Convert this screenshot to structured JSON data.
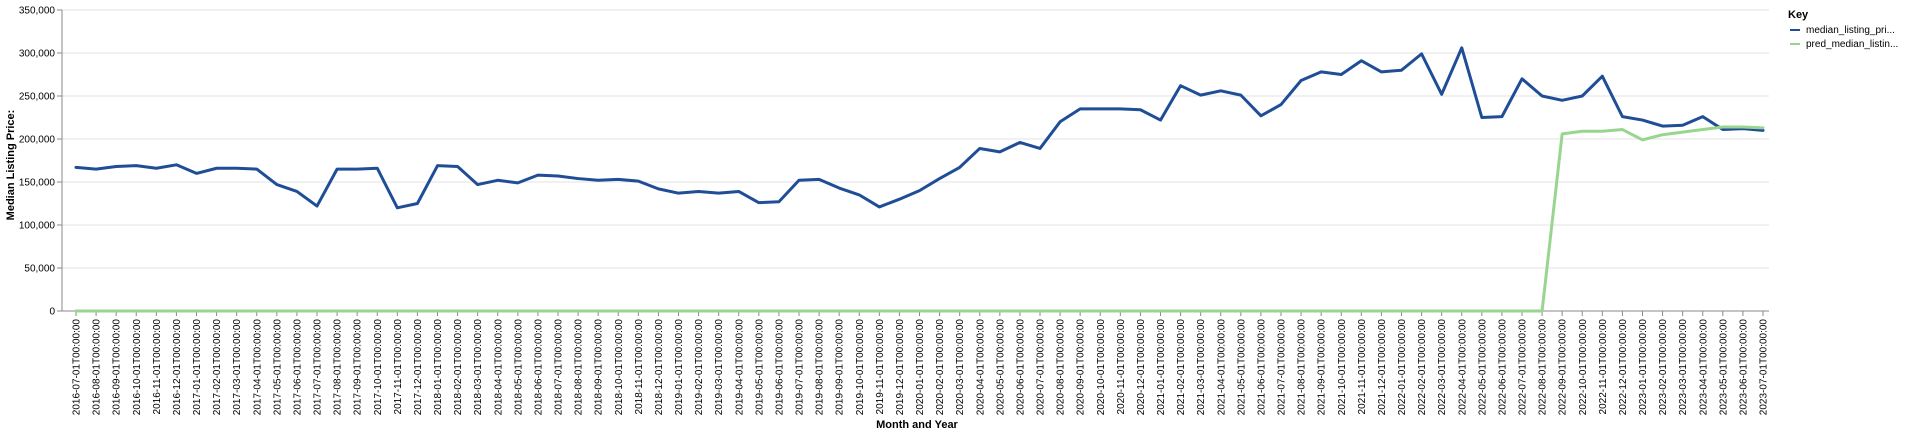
{
  "chart_data": {
    "type": "line",
    "xlabel": "Month and Year",
    "ylabel": "Median Listing Price:",
    "ylim": [
      0,
      350000
    ],
    "yticks": [
      "0",
      "50,000",
      "100,000",
      "150,000",
      "200,000",
      "250,000",
      "300,000",
      "350,000"
    ],
    "grid": true,
    "legend": {
      "title": "Key",
      "position": "top-right"
    },
    "x": [
      "2016-07-01T00:00:00",
      "2016-08-01T00:00:00",
      "2016-09-01T00:00:00",
      "2016-10-01T00:00:00",
      "2016-11-01T00:00:00",
      "2016-12-01T00:00:00",
      "2017-01-01T00:00:00",
      "2017-02-01T00:00:00",
      "2017-03-01T00:00:00",
      "2017-04-01T00:00:00",
      "2017-05-01T00:00:00",
      "2017-06-01T00:00:00",
      "2017-07-01T00:00:00",
      "2017-08-01T00:00:00",
      "2017-09-01T00:00:00",
      "2017-10-01T00:00:00",
      "2017-11-01T00:00:00",
      "2017-12-01T00:00:00",
      "2018-01-01T00:00:00",
      "2018-02-01T00:00:00",
      "2018-03-01T00:00:00",
      "2018-04-01T00:00:00",
      "2018-05-01T00:00:00",
      "2018-06-01T00:00:00",
      "2018-07-01T00:00:00",
      "2018-08-01T00:00:00",
      "2018-09-01T00:00:00",
      "2018-10-01T00:00:00",
      "2018-11-01T00:00:00",
      "2018-12-01T00:00:00",
      "2019-01-01T00:00:00",
      "2019-02-01T00:00:00",
      "2019-03-01T00:00:00",
      "2019-04-01T00:00:00",
      "2019-05-01T00:00:00",
      "2019-06-01T00:00:00",
      "2019-07-01T00:00:00",
      "2019-08-01T00:00:00",
      "2019-09-01T00:00:00",
      "2019-10-01T00:00:00",
      "2019-11-01T00:00:00",
      "2019-12-01T00:00:00",
      "2020-01-01T00:00:00",
      "2020-02-01T00:00:00",
      "2020-03-01T00:00:00",
      "2020-04-01T00:00:00",
      "2020-05-01T00:00:00",
      "2020-06-01T00:00:00",
      "2020-07-01T00:00:00",
      "2020-08-01T00:00:00",
      "2020-09-01T00:00:00",
      "2020-10-01T00:00:00",
      "2020-11-01T00:00:00",
      "2020-12-01T00:00:00",
      "2021-01-01T00:00:00",
      "2021-02-01T00:00:00",
      "2021-03-01T00:00:00",
      "2021-04-01T00:00:00",
      "2021-05-01T00:00:00",
      "2021-06-01T00:00:00",
      "2021-07-01T00:00:00",
      "2021-08-01T00:00:00",
      "2021-09-01T00:00:00",
      "2021-10-01T00:00:00",
      "2021-11-01T00:00:00",
      "2021-12-01T00:00:00",
      "2022-01-01T00:00:00",
      "2022-02-01T00:00:00",
      "2022-03-01T00:00:00",
      "2022-04-01T00:00:00",
      "2022-05-01T00:00:00",
      "2022-06-01T00:00:00",
      "2022-07-01T00:00:00",
      "2022-08-01T00:00:00",
      "2022-09-01T00:00:00",
      "2022-10-01T00:00:00",
      "2022-11-01T00:00:00",
      "2022-12-01T00:00:00",
      "2023-01-01T00:00:00",
      "2023-02-01T00:00:00",
      "2023-03-01T00:00:00",
      "2023-04-01T00:00:00",
      "2023-05-01T00:00:00",
      "2023-06-01T00:00:00",
      "2023-07-01T00:00:00"
    ],
    "series": [
      {
        "name": "median_listing_pri...",
        "color": "#1f4e96",
        "values": [
          167000,
          165000,
          168000,
          169000,
          166000,
          170000,
          160000,
          166000,
          166000,
          165000,
          147000,
          139000,
          122000,
          165000,
          165000,
          166000,
          120000,
          125000,
          169000,
          168000,
          147000,
          152000,
          149000,
          158000,
          157000,
          154000,
          152000,
          153000,
          151000,
          142000,
          137000,
          139000,
          137000,
          139000,
          126000,
          127000,
          152000,
          153000,
          143000,
          135000,
          121000,
          130000,
          140000,
          154000,
          167000,
          189000,
          185000,
          196000,
          189000,
          220000,
          235000,
          235000,
          235000,
          234000,
          222000,
          262000,
          251000,
          256000,
          251000,
          227000,
          240000,
          268000,
          278000,
          275000,
          291000,
          278000,
          280000,
          299000,
          252000,
          306000,
          225000,
          226000,
          270000,
          250000,
          245000,
          250000,
          273000,
          226000,
          222000,
          215000,
          216000,
          226000,
          211000,
          212000,
          210000
        ]
      },
      {
        "name": "pred_median_listin...",
        "color": "#98d68f",
        "values": [
          0,
          0,
          0,
          0,
          0,
          0,
          0,
          0,
          0,
          0,
          0,
          0,
          0,
          0,
          0,
          0,
          0,
          0,
          0,
          0,
          0,
          0,
          0,
          0,
          0,
          0,
          0,
          0,
          0,
          0,
          0,
          0,
          0,
          0,
          0,
          0,
          0,
          0,
          0,
          0,
          0,
          0,
          0,
          0,
          0,
          0,
          0,
          0,
          0,
          0,
          0,
          0,
          0,
          0,
          0,
          0,
          0,
          0,
          0,
          0,
          0,
          0,
          0,
          0,
          0,
          0,
          0,
          0,
          0,
          0,
          0,
          0,
          0,
          0,
          206000,
          209000,
          209000,
          211000,
          199000,
          205000,
          208000,
          211000,
          214000,
          214000,
          213000
        ]
      }
    ]
  }
}
